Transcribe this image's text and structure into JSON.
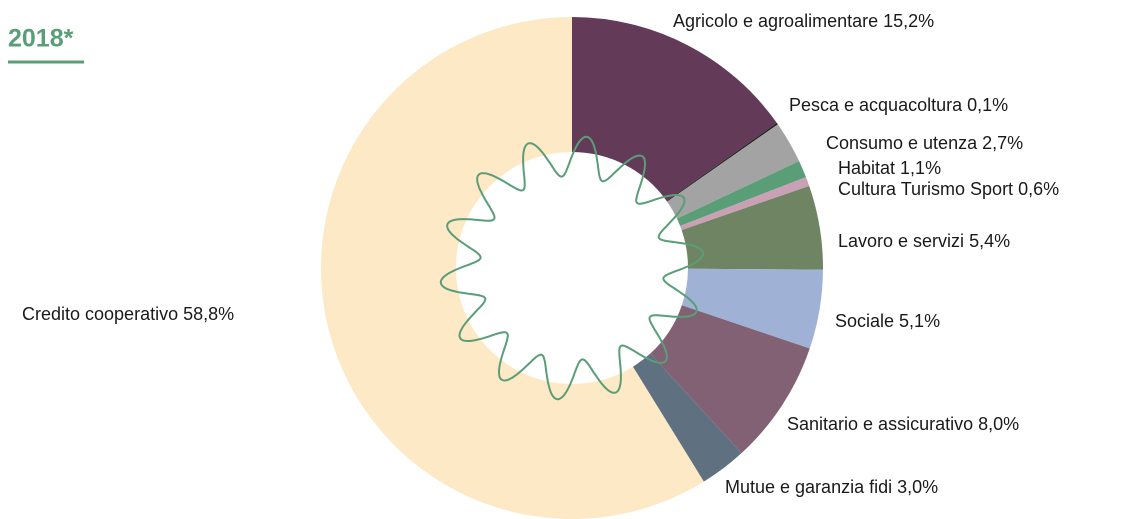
{
  "chart_data": {
    "type": "pie",
    "title": "2018*",
    "categories": [
      "Agricolo e agroalimentare",
      "Pesca e acquacoltura",
      "Consumo e utenza",
      "Habitat",
      "Cultura Turismo Sport",
      "Lavoro e servizi",
      "Sociale",
      "Sanitario e assicurativo",
      "Mutue e garanzia fidi",
      "Credito cooperativo"
    ],
    "values": [
      15.2,
      0.1,
      2.7,
      1.1,
      0.6,
      5.4,
      5.1,
      8.0,
      3.0,
      58.8
    ],
    "value_labels": [
      "15,2%",
      "0,1%",
      "2,7%",
      "1,1%",
      "0,6%",
      "5,4%",
      "5,1%",
      "8,0%",
      "3,0%",
      "58,8%"
    ],
    "colors": [
      "#633a57",
      "#1e1e1e",
      "#a3a3a3",
      "#5a9e78",
      "#c9a0b4",
      "#6e8462",
      "#9fb2d5",
      "#826174",
      "#5f7181",
      "#fde9c6"
    ]
  }
}
